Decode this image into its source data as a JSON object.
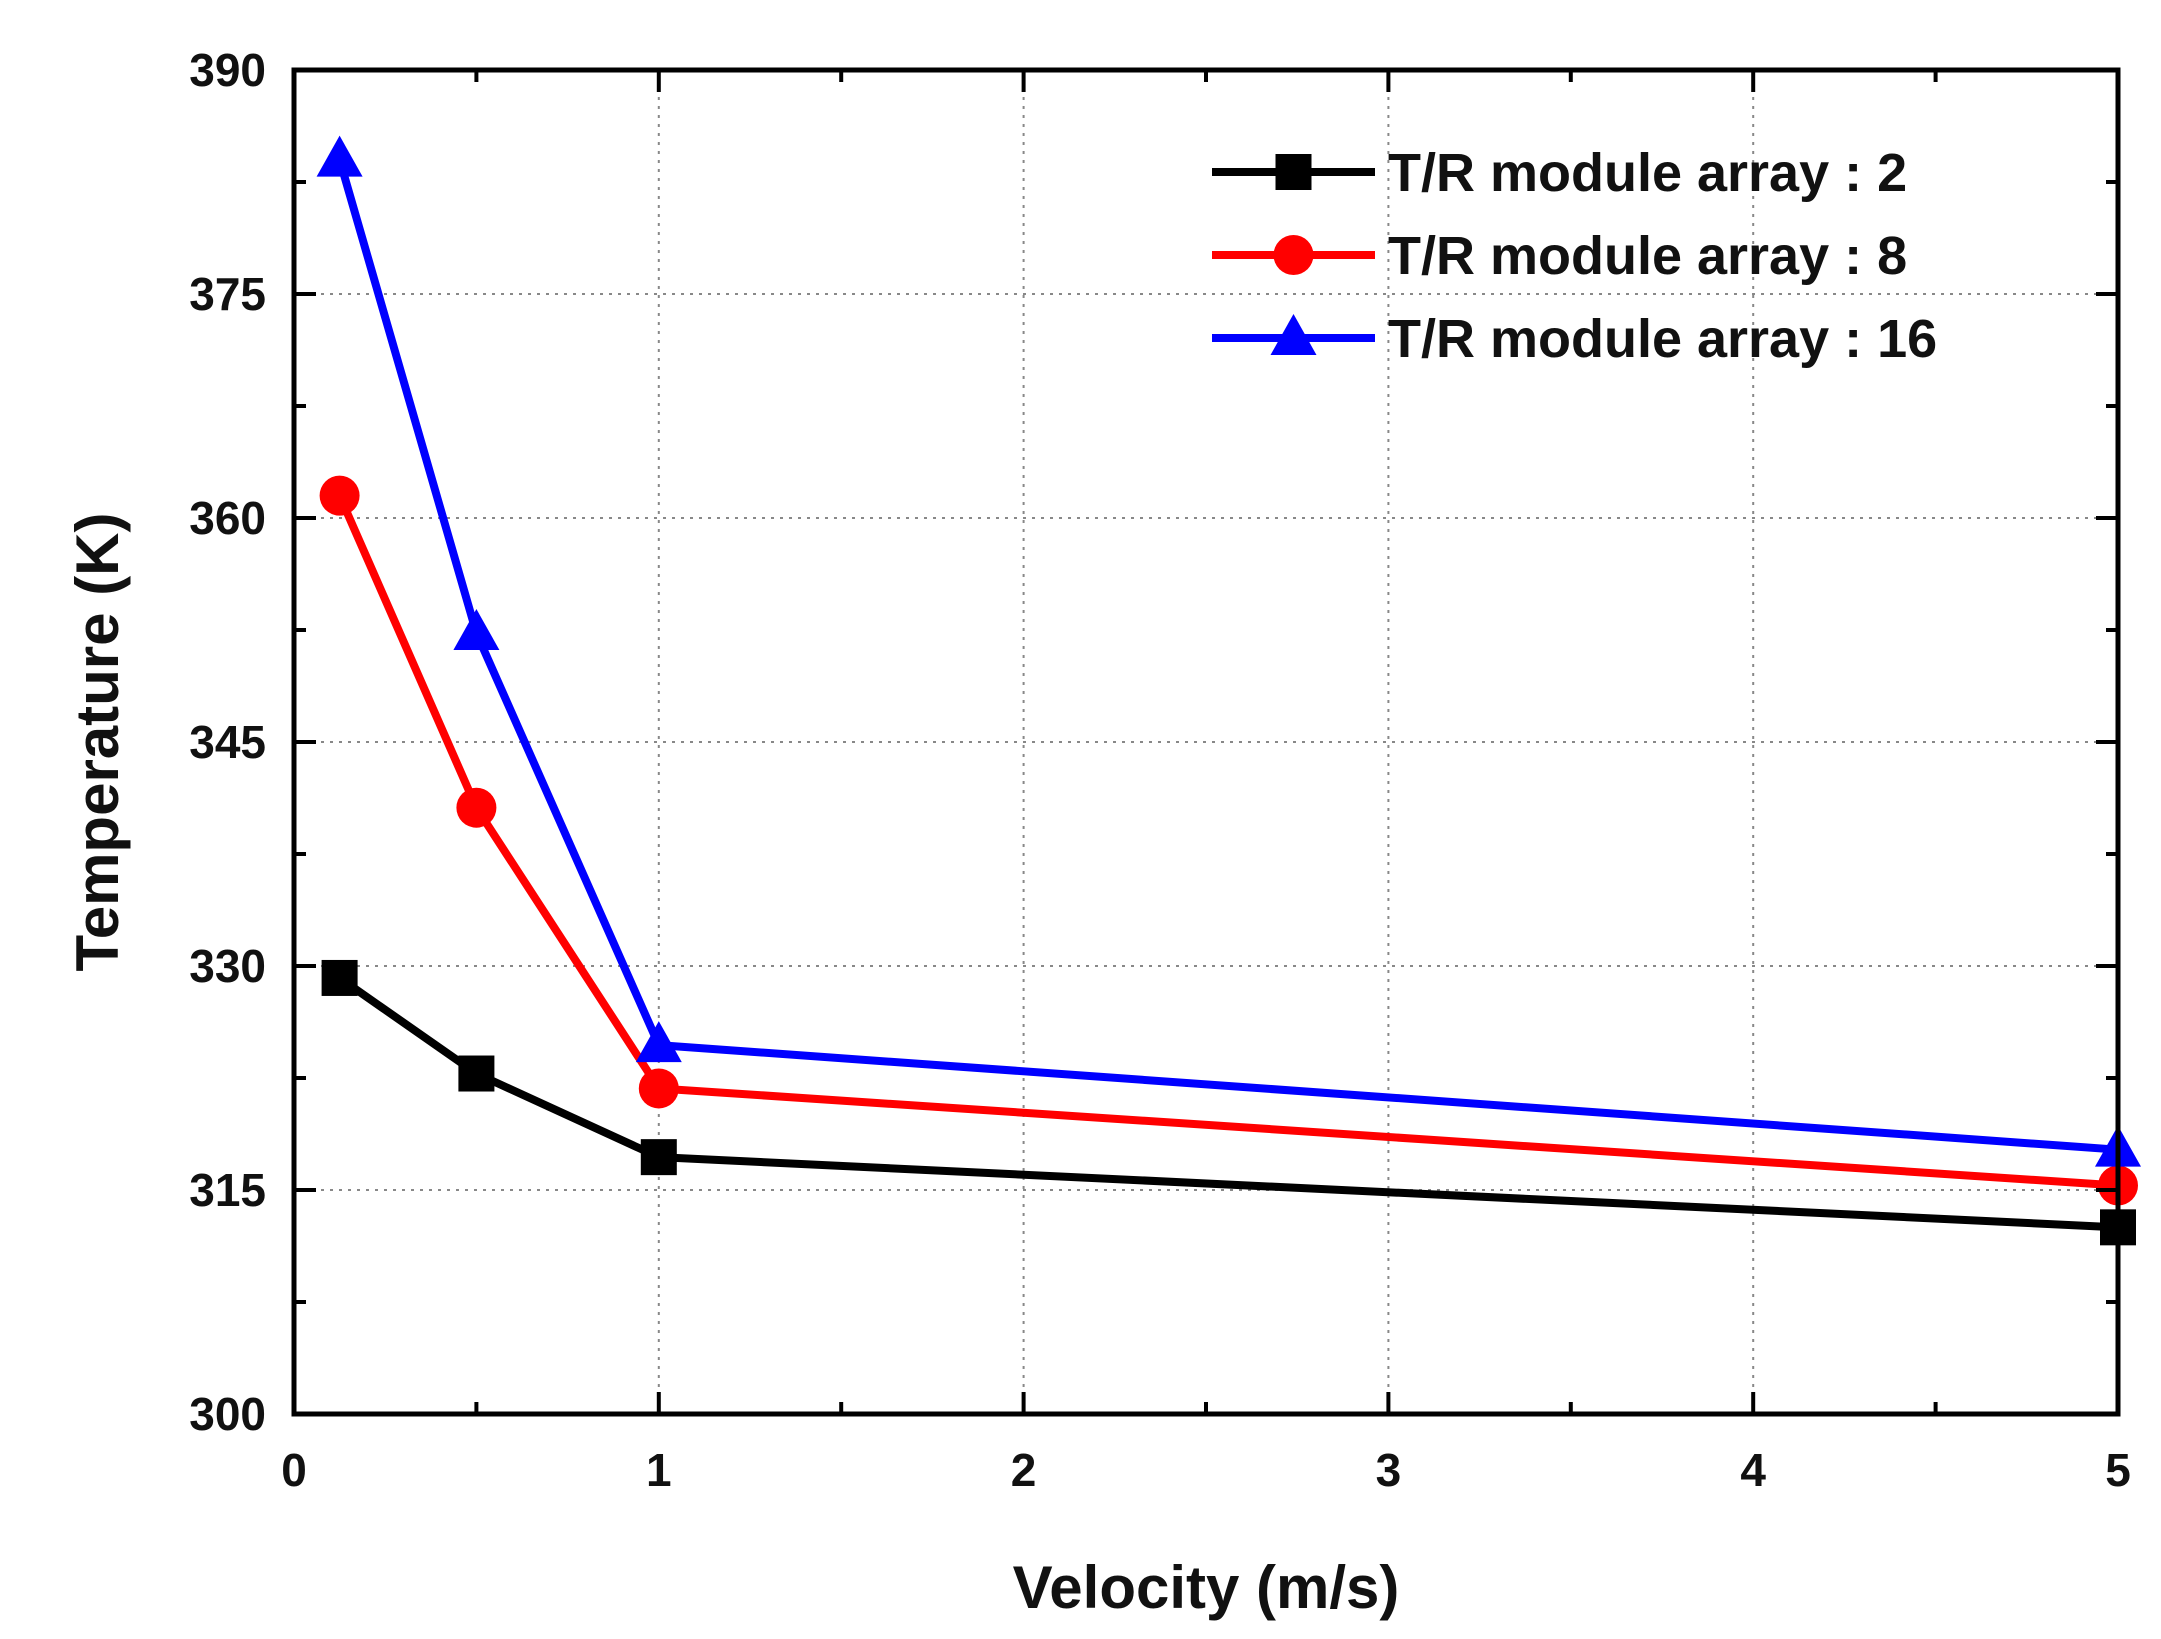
{
  "chart_data": {
    "type": "line",
    "title": "",
    "xlabel": "Velocity (m/s)",
    "ylabel": "Temperature (K)",
    "xlim": [
      0,
      5
    ],
    "ylim": [
      300,
      390
    ],
    "xticks": [
      0,
      1,
      2,
      3,
      4,
      5
    ],
    "xtick_labels": [
      "0",
      "1",
      "2",
      "3",
      "4",
      "5"
    ],
    "yticks": [
      300,
      315,
      330,
      345,
      360,
      375,
      390
    ],
    "ytick_labels": [
      "300",
      "315",
      "330",
      "345",
      "360",
      "375",
      "390"
    ],
    "grid": true,
    "legend_position": "top-right",
    "x": [
      0.125,
      0.5,
      1,
      5
    ],
    "series": [
      {
        "name": "T/R module array : 2",
        "color": "#000000",
        "marker": "square",
        "values": [
          329.2,
          322.8,
          317.2,
          312.5
        ]
      },
      {
        "name": "T/R module array : 8",
        "color": "#ff0000",
        "marker": "circle",
        "values": [
          361.5,
          340.6,
          321.8,
          315.3
        ]
      },
      {
        "name": "T/R module array : 16",
        "color": "#0000ff",
        "marker": "triangle",
        "values": [
          384.0,
          352.3,
          324.7,
          317.7
        ]
      }
    ]
  }
}
